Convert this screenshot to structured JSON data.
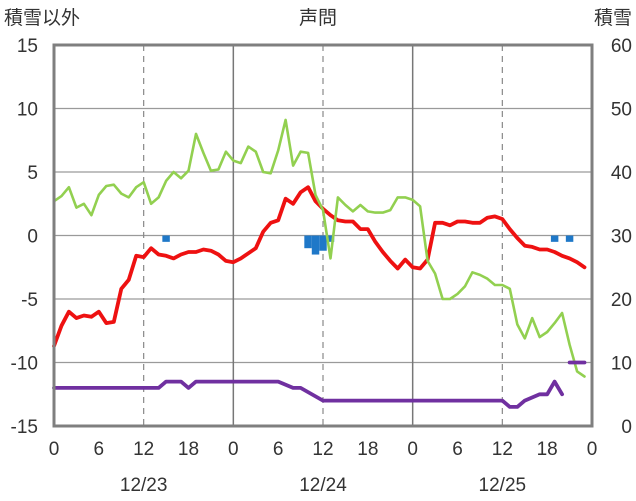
{
  "chart_data": {
    "type": "line",
    "title": "声問",
    "left_axis_label": "積雪以外",
    "right_axis_label": "積雪",
    "left_axis": {
      "ylim": [
        -15,
        15
      ],
      "ticks": [
        "-15",
        "-10",
        "-5",
        "0",
        "5",
        "10",
        "15"
      ]
    },
    "right_axis": {
      "ylim": [
        0,
        60
      ],
      "ticks": [
        "0",
        "10",
        "20",
        "30",
        "40",
        "50",
        "60"
      ]
    },
    "x_hour_ticks": [
      "0",
      "6",
      "12",
      "18",
      "0",
      "6",
      "12",
      "18",
      "0",
      "6",
      "12",
      "18",
      "0"
    ],
    "date_labels": [
      "12/23",
      "12/24",
      "12/25"
    ],
    "xlim_hours": [
      0,
      72
    ],
    "grid_hours": [
      12,
      24,
      36,
      48,
      60
    ],
    "grid_major_hours": [
      24,
      48
    ],
    "series": [
      {
        "color": "#ee1111",
        "axis": "left",
        "x": [
          0,
          1,
          2,
          3,
          4,
          5,
          6,
          7,
          8,
          9,
          10,
          11,
          12,
          13,
          14,
          15,
          16,
          17,
          18,
          19,
          20,
          21,
          22,
          23,
          24,
          25,
          26,
          27,
          28,
          29,
          30,
          31,
          32,
          33,
          34,
          35,
          36,
          37,
          38,
          39,
          40,
          41,
          42,
          43,
          44,
          45,
          46,
          47,
          48,
          49,
          50,
          51,
          52,
          53,
          54,
          55,
          56,
          57,
          58,
          59,
          60,
          61,
          62,
          63,
          64,
          65,
          66,
          67,
          68,
          69,
          70,
          71
        ],
        "y": [
          -8.7,
          -7.1,
          -6.0,
          -6.5,
          -6.3,
          -6.4,
          -6.0,
          -6.9,
          -6.8,
          -4.2,
          -3.5,
          -1.6,
          -1.7,
          -1.0,
          -1.5,
          -1.6,
          -1.8,
          -1.5,
          -1.3,
          -1.3,
          -1.1,
          -1.2,
          -1.5,
          -2.0,
          -2.1,
          -1.8,
          -1.4,
          -1.0,
          0.3,
          1.0,
          1.2,
          2.9,
          2.5,
          3.4,
          3.8,
          2.7,
          2.1,
          1.6,
          1.2,
          1.1,
          1.1,
          0.5,
          0.5,
          -0.5,
          -1.3,
          -2.0,
          -2.6,
          -1.9,
          -2.5,
          -2.6,
          -1.9,
          1.0,
          1.0,
          0.8,
          1.1,
          1.1,
          1.0,
          1.0,
          1.4,
          1.5,
          1.3,
          0.5,
          -0.2,
          -0.8,
          -0.9,
          -1.1,
          -1.1,
          -1.3,
          -1.6,
          -1.8,
          -2.1,
          -2.5
        ]
      },
      {
        "color": "#92d050",
        "axis": "left",
        "x": [
          0,
          1,
          2,
          3,
          4,
          5,
          6,
          7,
          8,
          9,
          10,
          11,
          12,
          13,
          14,
          15,
          16,
          17,
          18,
          19,
          20,
          21,
          22,
          23,
          24,
          25,
          26,
          27,
          28,
          29,
          30,
          31,
          32,
          33,
          34,
          35,
          36,
          37,
          38,
          39,
          40,
          41,
          42,
          43,
          44,
          45,
          46,
          47,
          48,
          49,
          50,
          51,
          52,
          53,
          54,
          55,
          56,
          57,
          58,
          59,
          60,
          61,
          62,
          63,
          64,
          65,
          66,
          67,
          68,
          69,
          70,
          71
        ],
        "y": [
          2.7,
          3.1,
          3.8,
          2.2,
          2.5,
          1.6,
          3.2,
          3.9,
          4.0,
          3.3,
          3.0,
          3.8,
          4.2,
          2.5,
          3.0,
          4.3,
          5.0,
          4.5,
          5.1,
          8.0,
          6.5,
          5.1,
          5.2,
          6.6,
          5.9,
          5.7,
          7.0,
          6.6,
          5.0,
          4.9,
          6.7,
          9.1,
          5.5,
          6.6,
          6.5,
          3.2,
          2.0,
          -1.8,
          3.0,
          2.4,
          1.9,
          2.4,
          1.9,
          1.8,
          1.8,
          2.0,
          3.0,
          3.0,
          2.8,
          2.3,
          -2.0,
          -3.0,
          -5.0,
          -5.0,
          -4.6,
          -4.0,
          -2.9,
          -3.1,
          -3.4,
          -3.9,
          -3.9,
          -4.2,
          -7.0,
          -8.1,
          -6.5,
          -8.0,
          -7.6,
          -6.9,
          -6.1,
          -8.6,
          -10.7,
          -11.1
        ]
      },
      {
        "color": "#7030a0",
        "axis": "right",
        "segments": [
          {
            "x": [
              0,
              14,
              15,
              17,
              18,
              19,
              30,
              32,
              33,
              36,
              60,
              61,
              62,
              63,
              65,
              66,
              67,
              68
            ],
            "y": [
              6,
              6,
              7,
              7,
              6,
              7,
              7,
              6,
              6,
              4,
              4,
              3,
              3,
              4,
              5,
              5,
              7,
              5
            ]
          },
          {
            "x": [
              69,
              70,
              71
            ],
            "y": [
              10,
              10,
              10
            ]
          }
        ]
      },
      {
        "color": "#1f78c8",
        "axis": "left",
        "type": "bar",
        "x": [
          15,
          34,
          35,
          36,
          37,
          67,
          69
        ],
        "y": [
          -0.5,
          -1.0,
          -1.5,
          -1.2,
          -0.5,
          -0.5,
          -0.5
        ]
      }
    ]
  }
}
